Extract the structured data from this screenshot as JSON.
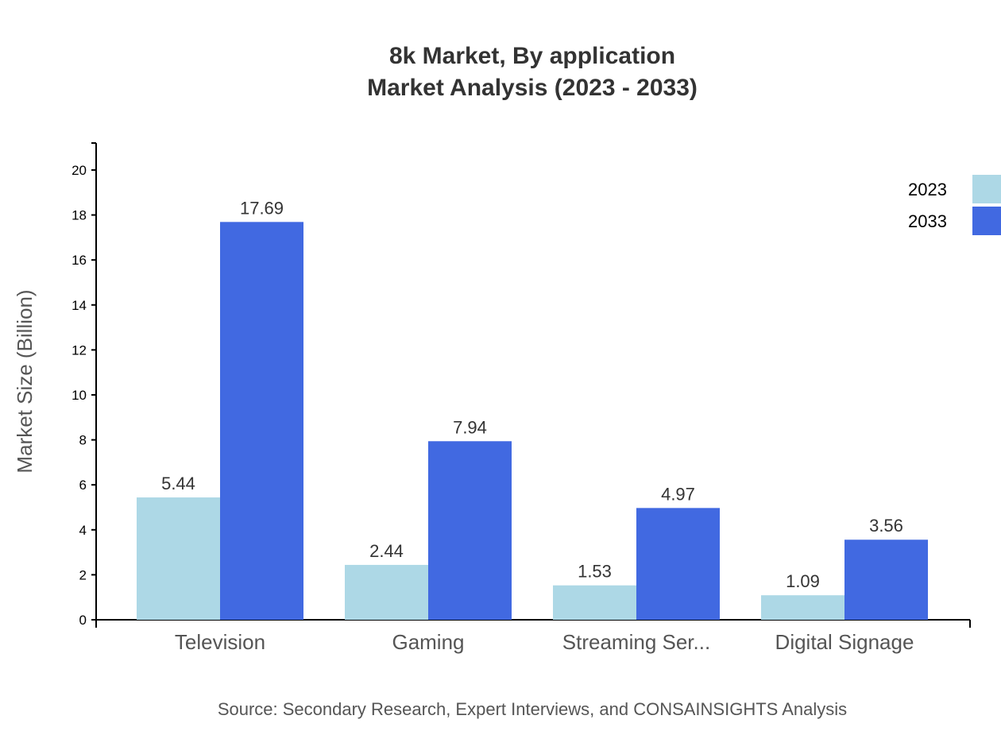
{
  "chart_data": {
    "type": "bar",
    "title": "8k Market, By application",
    "subtitle": "Market Analysis (2023 - 2033)",
    "xlabel": "",
    "ylabel": "Market Size (Billion)",
    "ylim": [
      0,
      21.2
    ],
    "yticks": [
      0,
      2,
      4,
      6,
      8,
      10,
      12,
      14,
      16,
      18,
      20
    ],
    "categories": [
      "Television",
      "Gaming",
      "Streaming Ser...",
      "Digital Signage"
    ],
    "series": [
      {
        "name": "2023",
        "color": "#add8e6",
        "values": [
          5.44,
          2.44,
          1.53,
          1.09
        ]
      },
      {
        "name": "2033",
        "color": "#4169e1",
        "values": [
          17.69,
          7.94,
          4.97,
          3.56
        ]
      }
    ],
    "legend": "top-right",
    "grid": false,
    "source": "Source: Secondary Research, Expert Interviews, and CONSAINSIGHTS Analysis"
  }
}
